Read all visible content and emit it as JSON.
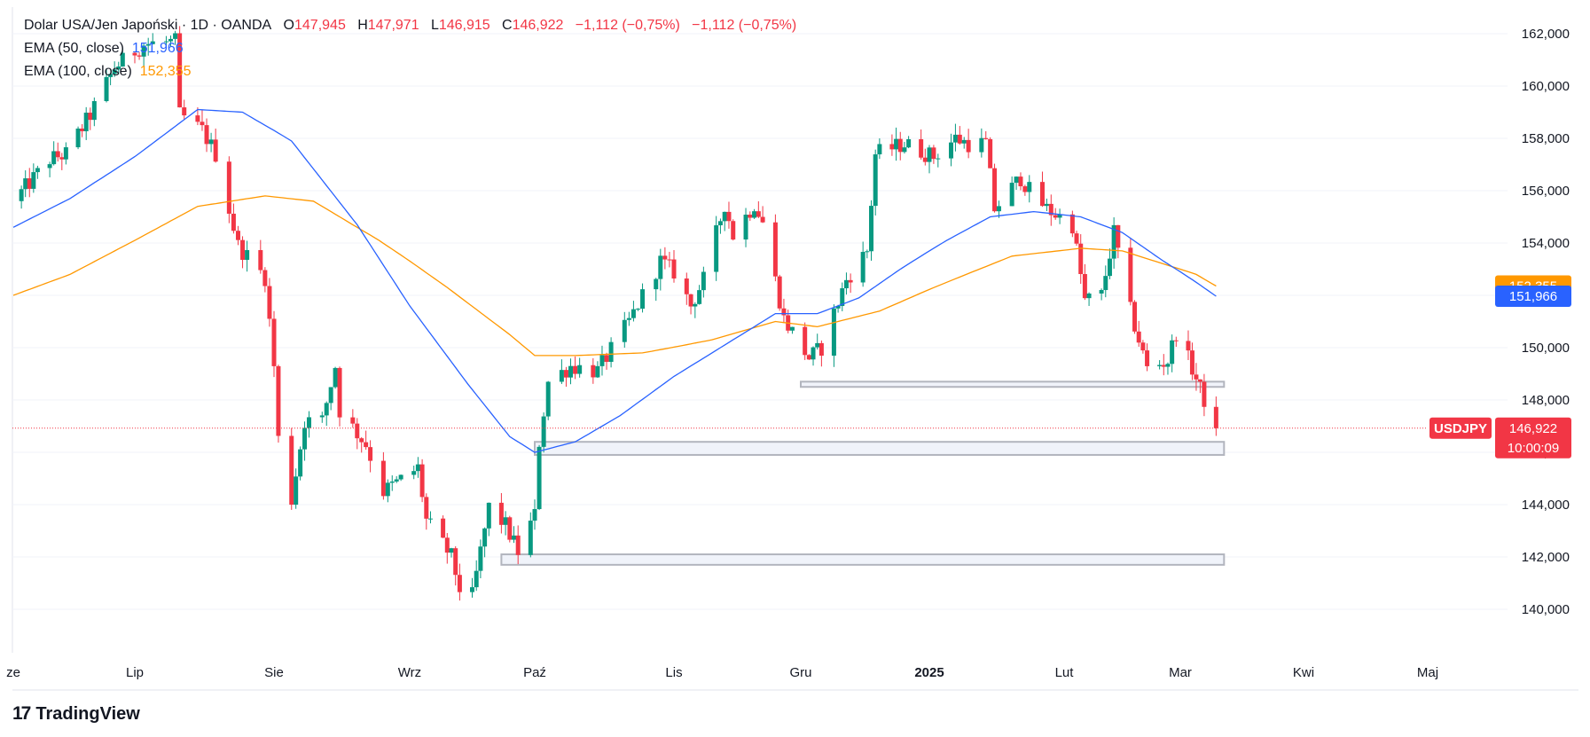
{
  "legend": {
    "symbol_line": "Dolar USA/Jen Japoński · 1D · OANDA",
    "o_label": "O",
    "o_value": "147,945",
    "h_label": "H",
    "h_value": "147,971",
    "l_label": "L",
    "l_value": "146,915",
    "c_label": "C",
    "c_value": "146,922",
    "change": "−1,112 (−0,75%)",
    "change2": "−1,112 (−0,75%)",
    "ema50_label": "EMA (50, close)",
    "ema50_value": "151,966",
    "ema100_label": "EMA (100, close)",
    "ema100_value": "152,355"
  },
  "brand": {
    "logo_mark": "17",
    "name": "TradingView"
  },
  "colors": {
    "up": "#089981",
    "down": "#F23645",
    "ema50": "#2962FF",
    "ema100": "#FF9800",
    "zone": "#B2B5BE",
    "grid": "#F0F3FA",
    "axis_text": "#131722"
  },
  "chart_data": {
    "type": "candlestick",
    "title": "Dolar USA/Jen Japoński · 1D · OANDA",
    "ylim": [
      138500,
      163000
    ],
    "y_ticks": [
      140000,
      142000,
      144000,
      146000,
      148000,
      150000,
      152000,
      154000,
      156000,
      158000,
      160000,
      162000
    ],
    "y_tick_labels": [
      "140,000",
      "142,000",
      "144,000",
      "146,000",
      "148,000",
      "150,000",
      "152,000",
      "154,000",
      "156,000",
      "158,000",
      "160,000",
      "162,000"
    ],
    "x_ticks": [
      {
        "date": "2024-06-01",
        "label": "ze"
      },
      {
        "date": "2024-07-01",
        "label": "Lip"
      },
      {
        "date": "2024-08-01",
        "label": "Sie"
      },
      {
        "date": "2024-09-01",
        "label": "Wrz"
      },
      {
        "date": "2024-10-01",
        "label": "Paź"
      },
      {
        "date": "2024-11-01",
        "label": "Lis"
      },
      {
        "date": "2024-12-01",
        "label": "Gru"
      },
      {
        "date": "2025-01-01",
        "label": "2025",
        "bold": true
      },
      {
        "date": "2025-02-01",
        "label": "Lut"
      },
      {
        "date": "2025-03-01",
        "label": "Mar"
      },
      {
        "date": "2025-04-01",
        "label": "Kwi"
      },
      {
        "date": "2025-05-01",
        "label": "Maj"
      }
    ],
    "close_anchors": [
      [
        "2024-06-01",
        155600
      ],
      [
        "2024-06-05",
        156300
      ],
      [
        "2024-06-10",
        157200
      ],
      [
        "2024-06-14",
        157400
      ],
      [
        "2024-06-20",
        158900
      ],
      [
        "2024-06-26",
        160700
      ],
      [
        "2024-07-03",
        161600
      ],
      [
        "2024-07-10",
        161700
      ],
      [
        "2024-07-11",
        158900
      ],
      [
        "2024-07-16",
        158300
      ],
      [
        "2024-07-19",
        157400
      ],
      [
        "2024-07-24",
        153900
      ],
      [
        "2024-07-30",
        152700
      ],
      [
        "2024-08-01",
        149300
      ],
      [
        "2024-08-02",
        146500
      ],
      [
        "2024-08-05",
        144200
      ],
      [
        "2024-08-08",
        147200
      ],
      [
        "2024-08-12",
        147200
      ],
      [
        "2024-08-15",
        149300
      ],
      [
        "2024-08-16",
        147600
      ],
      [
        "2024-08-22",
        146300
      ],
      [
        "2024-08-26",
        144500
      ],
      [
        "2024-09-03",
        145400
      ],
      [
        "2024-09-05",
        143400
      ],
      [
        "2024-09-11",
        142000
      ],
      [
        "2024-09-13",
        140800
      ],
      [
        "2024-09-16",
        140500
      ],
      [
        "2024-09-20",
        143900
      ],
      [
        "2024-09-24",
        143200
      ],
      [
        "2024-09-27",
        142200
      ],
      [
        "2024-10-01",
        143600
      ],
      [
        "2024-10-02",
        146400
      ],
      [
        "2024-10-04",
        148700
      ],
      [
        "2024-10-09",
        149300
      ],
      [
        "2024-10-15",
        149100
      ],
      [
        "2024-10-22",
        151000
      ],
      [
        "2024-10-29",
        153300
      ],
      [
        "2024-11-01",
        152900
      ],
      [
        "2024-11-05",
        151600
      ],
      [
        "2024-11-08",
        152600
      ],
      [
        "2024-11-13",
        155500
      ],
      [
        "2024-11-15",
        154300
      ],
      [
        "2024-11-20",
        155500
      ],
      [
        "2024-11-22",
        154800
      ],
      [
        "2024-11-27",
        151100
      ],
      [
        "2024-12-03",
        149600
      ],
      [
        "2024-12-06",
        150000
      ],
      [
        "2024-12-12",
        152600
      ],
      [
        "2024-12-17",
        153700
      ],
      [
        "2024-12-19",
        157400
      ],
      [
        "2024-12-26",
        157800
      ],
      [
        "2025-01-02",
        157300
      ],
      [
        "2025-01-07",
        158000
      ],
      [
        "2025-01-10",
        157800
      ],
      [
        "2025-01-14",
        157800
      ],
      [
        "2025-01-16",
        155300
      ],
      [
        "2025-01-22",
        156500
      ],
      [
        "2025-01-24",
        156000
      ],
      [
        "2025-01-28",
        155300
      ],
      [
        "2025-02-03",
        154700
      ],
      [
        "2025-02-06",
        151800
      ],
      [
        "2025-02-10",
        152000
      ],
      [
        "2025-02-13",
        154400
      ],
      [
        "2025-02-17",
        151400
      ],
      [
        "2025-02-21",
        149200
      ],
      [
        "2025-02-26",
        149500
      ],
      [
        "2025-02-28",
        150600
      ],
      [
        "2025-03-04",
        149200
      ],
      [
        "2025-03-07",
        148000
      ],
      [
        "2025-03-10",
        146922
      ]
    ],
    "ema50": [
      [
        "2024-06-01",
        154600
      ],
      [
        "2024-06-15",
        155700
      ],
      [
        "2024-07-01",
        157300
      ],
      [
        "2024-07-15",
        159100
      ],
      [
        "2024-07-25",
        159000
      ],
      [
        "2024-08-05",
        157900
      ],
      [
        "2024-08-20",
        154700
      ],
      [
        "2024-09-01",
        151600
      ],
      [
        "2024-09-15",
        148600
      ],
      [
        "2024-09-25",
        146600
      ],
      [
        "2024-10-01",
        146000
      ],
      [
        "2024-10-10",
        146400
      ],
      [
        "2024-10-20",
        147400
      ],
      [
        "2024-11-01",
        148900
      ],
      [
        "2024-11-15",
        150300
      ],
      [
        "2024-11-25",
        151300
      ],
      [
        "2024-12-05",
        151300
      ],
      [
        "2024-12-15",
        151900
      ],
      [
        "2024-12-25",
        153000
      ],
      [
        "2025-01-05",
        154100
      ],
      [
        "2025-01-15",
        155000
      ],
      [
        "2025-01-25",
        155200
      ],
      [
        "2025-02-05",
        155000
      ],
      [
        "2025-02-15",
        154400
      ],
      [
        "2025-02-25",
        153300
      ],
      [
        "2025-03-05",
        152500
      ],
      [
        "2025-03-10",
        151966
      ]
    ],
    "ema100": [
      [
        "2024-06-01",
        152000
      ],
      [
        "2024-06-15",
        152800
      ],
      [
        "2024-07-01",
        154100
      ],
      [
        "2024-07-15",
        155400
      ],
      [
        "2024-07-30",
        155800
      ],
      [
        "2024-08-10",
        155600
      ],
      [
        "2024-08-25",
        154100
      ],
      [
        "2024-09-10",
        152300
      ],
      [
        "2024-09-25",
        150500
      ],
      [
        "2024-10-01",
        149700
      ],
      [
        "2024-10-10",
        149700
      ],
      [
        "2024-10-25",
        149800
      ],
      [
        "2024-11-10",
        150300
      ],
      [
        "2024-11-25",
        151000
      ],
      [
        "2024-12-05",
        150800
      ],
      [
        "2024-12-20",
        151400
      ],
      [
        "2025-01-05",
        152500
      ],
      [
        "2025-01-20",
        153500
      ],
      [
        "2025-02-05",
        153800
      ],
      [
        "2025-02-15",
        153700
      ],
      [
        "2025-02-25",
        153200
      ],
      [
        "2025-03-05",
        152800
      ],
      [
        "2025-03-10",
        152355
      ]
    ],
    "zones": [
      {
        "from": "2024-12-01",
        "to": "2025-03-12",
        "low": 148500,
        "high": 148700
      },
      {
        "from": "2024-10-01",
        "to": "2025-03-12",
        "low": 145900,
        "high": 146400
      },
      {
        "from": "2024-09-23",
        "to": "2025-03-12",
        "low": 141700,
        "high": 142100
      }
    ],
    "last_price": {
      "value": 146922,
      "label": "146,922",
      "symbol": "USDJPY",
      "countdown": "10:00:09"
    },
    "ema_labels": [
      {
        "value": 152355,
        "label": "152,355",
        "color": "#FF9800"
      },
      {
        "value": 151966,
        "label": "151,966",
        "color": "#2962FF"
      }
    ]
  }
}
